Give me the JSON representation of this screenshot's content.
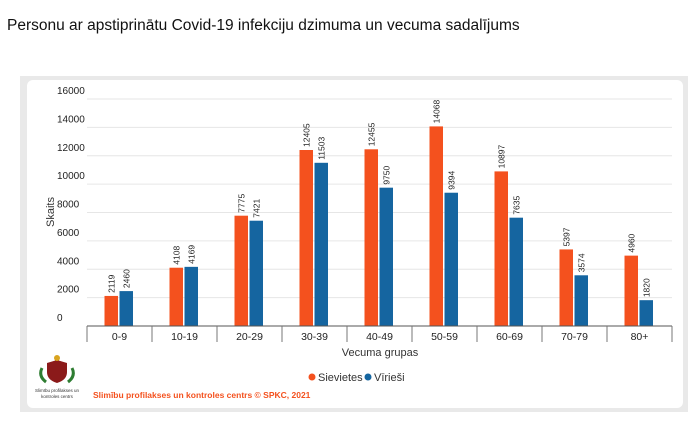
{
  "page_title": "Personu ar apstiprinātu Covid-19 infekciju dzimuma un vecuma sadalījums",
  "source": "Slimību profilakses un kontroles centrs © SPKC, 2021",
  "logo_text": [
    "Slimību profilakses un",
    "kontroles centrs"
  ],
  "chart_data": {
    "type": "bar",
    "title": "",
    "xlabel": "Vecuma grupas",
    "ylabel": "Skaits",
    "ylim": [
      0,
      16000
    ],
    "yticks": [
      0,
      2000,
      4000,
      6000,
      8000,
      10000,
      12000,
      14000,
      16000
    ],
    "grid": true,
    "legend": "bottom-right",
    "categories": [
      "0-9",
      "10-19",
      "20-29",
      "30-39",
      "40-49",
      "50-59",
      "60-69",
      "70-79",
      "80+"
    ],
    "series": [
      {
        "name": "Sievietes",
        "color": "#f4511e",
        "values": [
          2119,
          4108,
          7775,
          12405,
          12455,
          14068,
          10897,
          5397,
          4960
        ]
      },
      {
        "name": "Vīrieši",
        "color": "#1565a0",
        "values": [
          2460,
          4169,
          7421,
          11503,
          9750,
          9394,
          7635,
          3574,
          1820
        ]
      }
    ]
  }
}
